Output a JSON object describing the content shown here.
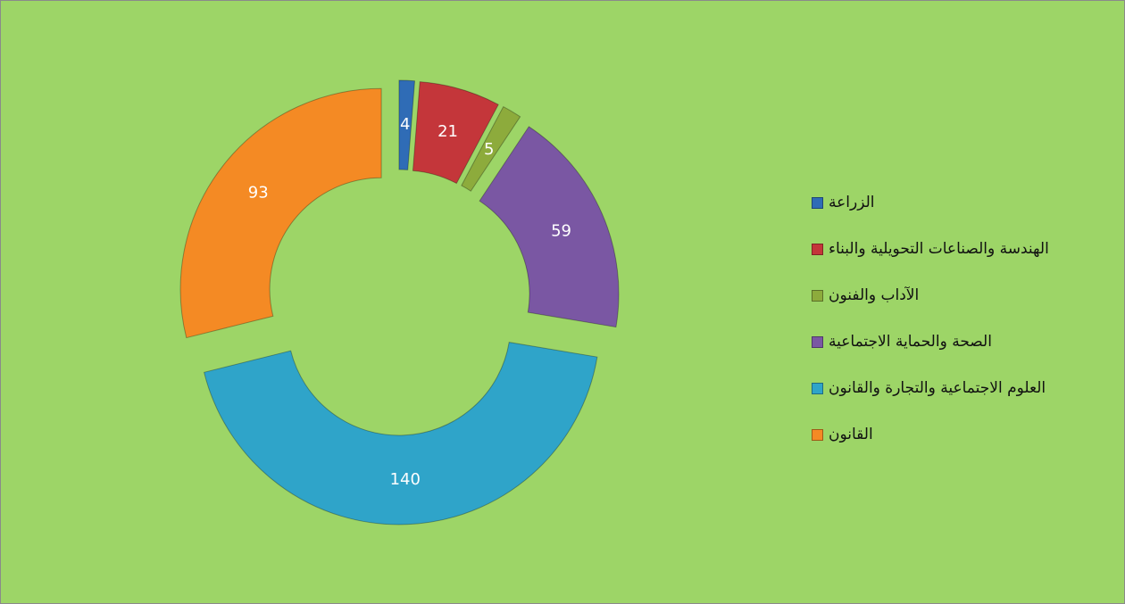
{
  "chart_data": {
    "type": "doughnut",
    "categories": [
      "الزراعة",
      "الهندسة والصناعات التحويلية والبناء",
      "الآداب والفنون",
      "الصحة والحماية الاجتماعية",
      "العلوم الاجتماعية والتجارة والقانون",
      "القانون"
    ],
    "values": [
      4,
      21,
      5,
      59,
      140,
      93
    ],
    "colors": [
      "#2f6cb6",
      "#c4363a",
      "#8dab3c",
      "#7a57a3",
      "#2fa4c9",
      "#f48a24"
    ],
    "legend": "right"
  }
}
